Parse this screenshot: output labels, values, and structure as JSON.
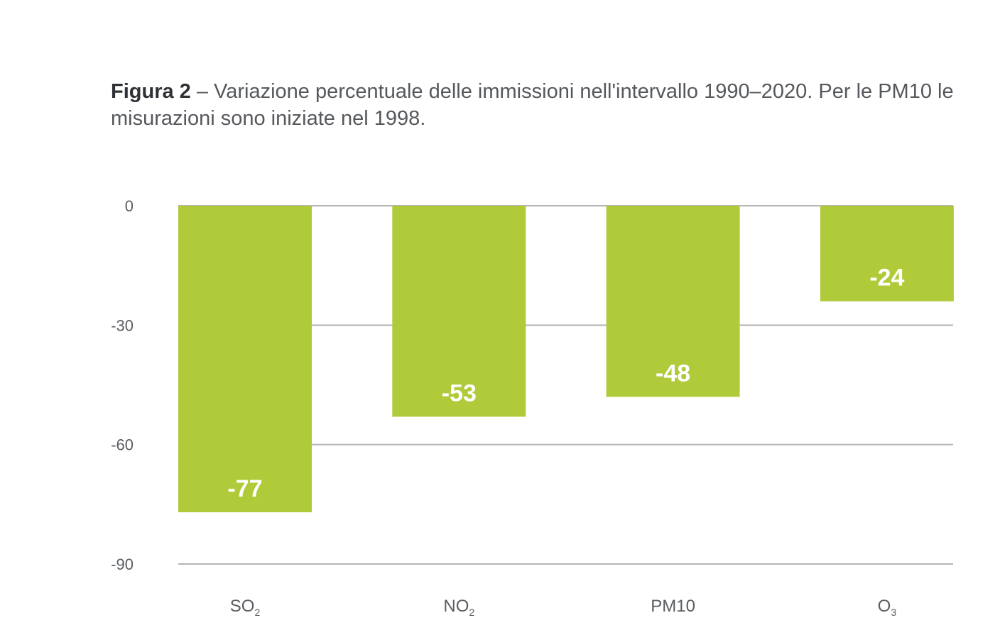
{
  "caption": {
    "figure_label": "Figura 2",
    "text": " – Variazione percentuale delle immissioni nell'intervallo 1990–2020. Per le PM10 le misurazioni sono iniziate nel 1998."
  },
  "colors": {
    "bar": "#afcb3a",
    "grid": "#b5b5b5",
    "text": "#5a5d61"
  },
  "chart_data": {
    "type": "bar",
    "categories": [
      {
        "main": "SO",
        "sub": "2"
      },
      {
        "main": "NO",
        "sub": "2"
      },
      {
        "main": "PM10",
        "sub": ""
      },
      {
        "main": "O",
        "sub": "3"
      }
    ],
    "values": [
      -77,
      -53,
      -48,
      -24
    ],
    "value_labels": [
      "-77",
      "-53",
      "-48",
      "-24"
    ],
    "yticks": [
      0,
      -30,
      -60,
      -90
    ],
    "ytick_labels": [
      "0",
      "-30",
      "-60",
      "-90"
    ],
    "ylim": [
      -90,
      0
    ],
    "grid": true
  }
}
